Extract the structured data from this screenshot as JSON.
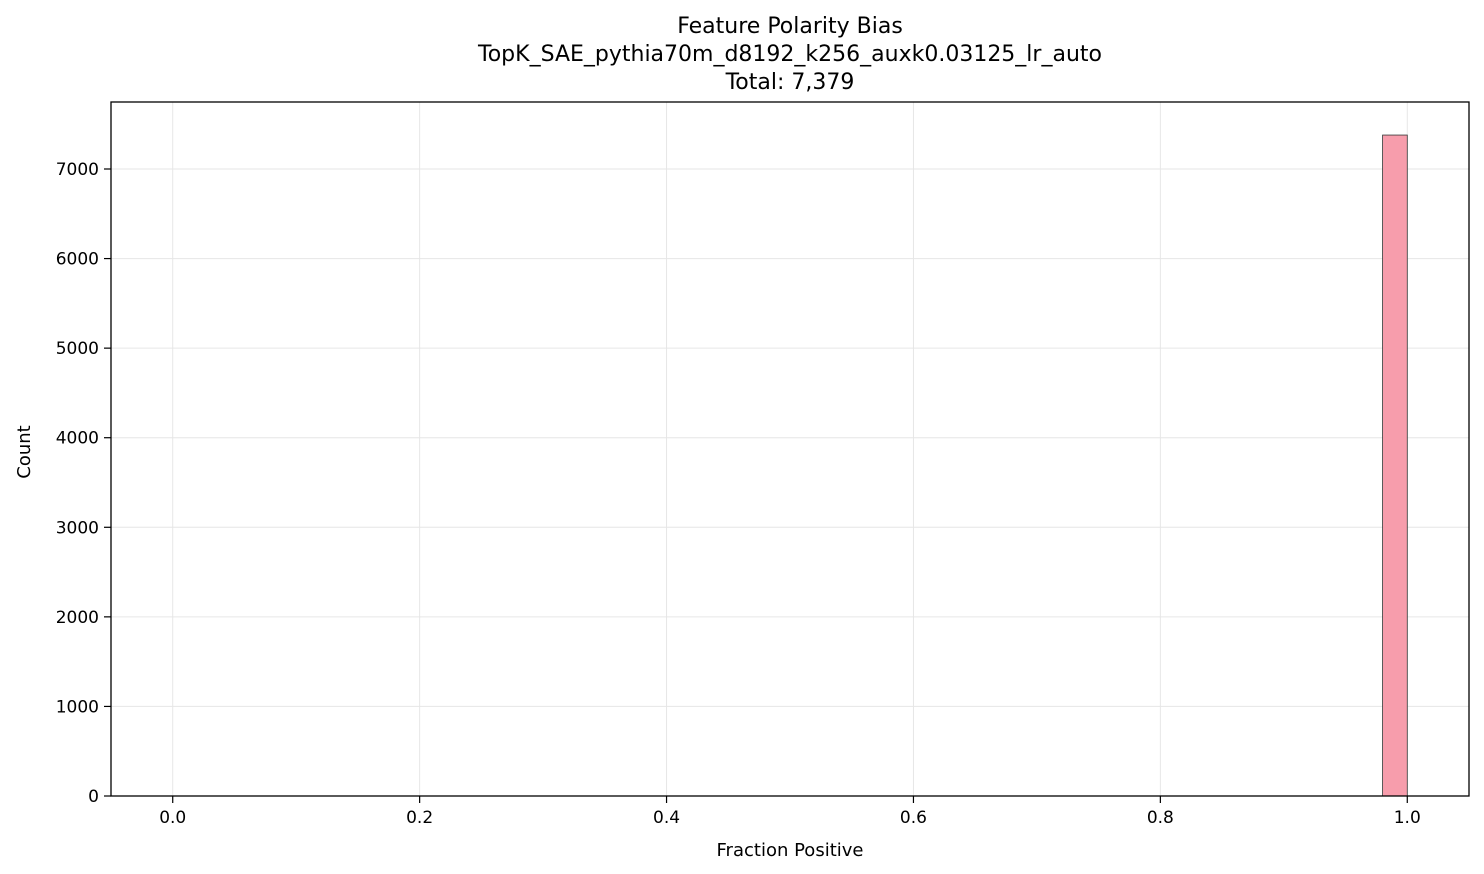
{
  "chart_data": {
    "type": "bar",
    "title_lines": [
      "Feature Polarity Bias",
      "TopK_SAE_pythia70m_d8192_k256_auxk0.03125_lr_auto",
      "Total: 7,379"
    ],
    "xlabel": "Fraction Positive",
    "ylabel": "Count",
    "xlim": [
      -0.05,
      1.05
    ],
    "ylim": [
      0,
      7748
    ],
    "xticks": [
      0.0,
      0.2,
      0.4,
      0.6,
      0.8,
      1.0
    ],
    "xtick_labels": [
      "0.0",
      "0.2",
      "0.4",
      "0.6",
      "0.8",
      "1.0"
    ],
    "yticks": [
      0,
      1000,
      2000,
      3000,
      4000,
      5000,
      6000,
      7000
    ],
    "ytick_labels": [
      "0",
      "1000",
      "2000",
      "3000",
      "4000",
      "5000",
      "6000",
      "7000"
    ],
    "grid": true,
    "bar_color": "#f79dac",
    "bar_edge_color": "#333333",
    "bins": [
      {
        "x0": 0.98,
        "x1": 1.0,
        "count": 7379
      }
    ]
  }
}
